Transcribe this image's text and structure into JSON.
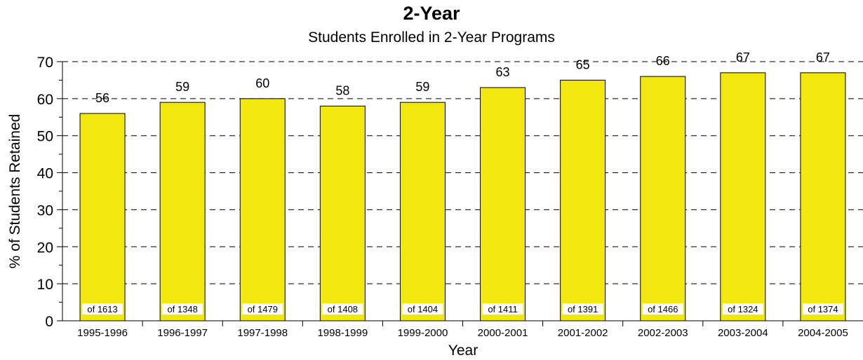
{
  "chart_data": {
    "type": "bar",
    "title": "2-Year",
    "subtitle": "Students Enrolled in 2-Year Programs",
    "xlabel": "Year",
    "ylabel": "% of Students Retained",
    "categories": [
      "1995-1996",
      "1996-1997",
      "1997-1998",
      "1998-1999",
      "1999-2000",
      "2000-2001",
      "2001-2002",
      "2002-2003",
      "2003-2004",
      "2004-2005"
    ],
    "values": [
      56,
      59,
      60,
      58,
      59,
      63,
      65,
      66,
      67,
      67
    ],
    "value_labels": [
      "56",
      "59",
      "60",
      "58",
      "59",
      "63",
      "65",
      "66",
      "67",
      "67"
    ],
    "base_labels": [
      "of 1613",
      "of 1348",
      "of 1479",
      "of 1408",
      "of 1404",
      "of 1411",
      "of 1391",
      "of 1466",
      "of 1324",
      "of 1374"
    ],
    "ylim": [
      0,
      70
    ],
    "yticks": [
      0,
      10,
      20,
      30,
      40,
      50,
      60,
      70
    ],
    "grid": true,
    "grid_style": "dashed",
    "bar_color": "#f2e70f",
    "bar_edge_color": "#000000"
  }
}
